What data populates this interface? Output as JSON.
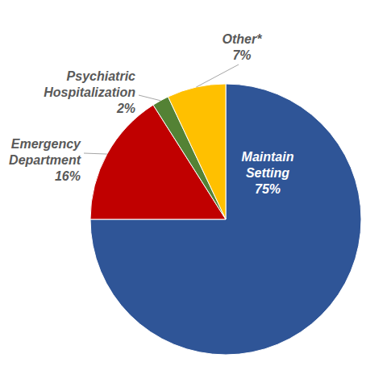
{
  "chart_data": {
    "type": "pie",
    "categories": [
      "Maintain Setting",
      "Emergency Department",
      "Psychiatric Hospitalization",
      "Other*"
    ],
    "values": [
      75,
      16,
      2,
      7
    ],
    "value_labels": [
      "75%",
      "16%",
      "2%",
      "7%"
    ],
    "colors": [
      "#2f5597",
      "#c00000",
      "#548235",
      "#ffc000"
    ],
    "data_labels": true
  }
}
